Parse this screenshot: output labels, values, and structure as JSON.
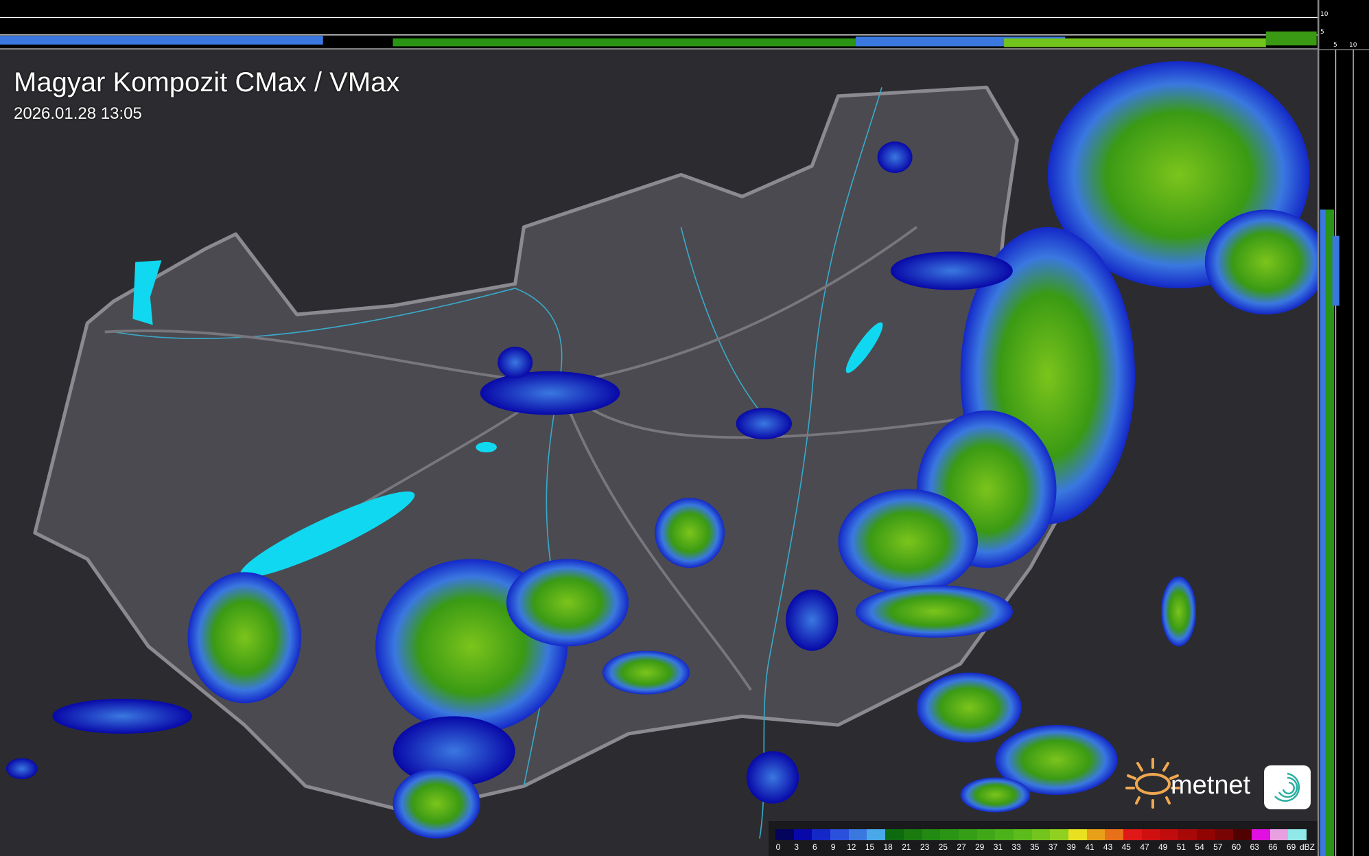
{
  "header": {
    "title": "Magyar Kompozit CMax / VMax",
    "timestamp": "2026.01.28 13:05"
  },
  "profile_axes": {
    "top_ticks": [
      "10",
      "5"
    ],
    "right_ticks": [
      "5",
      "10"
    ]
  },
  "legend": {
    "unit": "dBZ",
    "labels": [
      "0",
      "3",
      "6",
      "9",
      "12",
      "15",
      "18",
      "21",
      "23",
      "25",
      "27",
      "29",
      "31",
      "33",
      "35",
      "37",
      "39",
      "41",
      "43",
      "45",
      "47",
      "49",
      "51",
      "54",
      "57",
      "60",
      "63",
      "66",
      "69"
    ],
    "colors": [
      "#04045c",
      "#0808a8",
      "#1428c8",
      "#2a50dc",
      "#3a78e0",
      "#48a8e8",
      "#0e6a0e",
      "#1a7a10",
      "#228a12",
      "#2a9414",
      "#349e16",
      "#40a818",
      "#4cb21a",
      "#5cbc1c",
      "#74c41e",
      "#90d020",
      "#e8e020",
      "#e8a018",
      "#e87018",
      "#e01818",
      "#d01010",
      "#c00c0c",
      "#a80808",
      "#900404",
      "#780404",
      "#500202",
      "#e010e0",
      "#e8a0e0",
      "#90e8e8"
    ]
  },
  "branding": {
    "logo_text": "metnet"
  },
  "colors": {
    "background_terrain": "#2c2c30",
    "country_fill": "#4a4a50",
    "border": "#8a8a90",
    "rivers": "#3aa8c8",
    "lakes": "#10d8f0"
  }
}
